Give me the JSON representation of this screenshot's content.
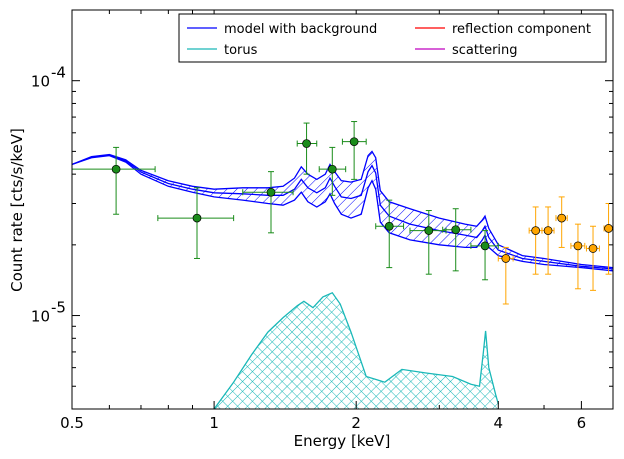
{
  "chart_data": {
    "type": "line",
    "xlabel": "Energy [keV]",
    "ylabel": "Count rate [cts/s/keV]",
    "xscale": "log",
    "yscale": "log",
    "xlim": [
      0.5,
      7.0
    ],
    "ylim": [
      4e-06,
      0.0002
    ],
    "x_ticks": [
      {
        "value": 0.5,
        "label": "0.5"
      },
      {
        "value": 1,
        "label": "1"
      },
      {
        "value": 2,
        "label": "2"
      },
      {
        "value": 4,
        "label": "4"
      },
      {
        "value": 6,
        "label": "6"
      }
    ],
    "y_ticks": [
      {
        "value": 1e-05,
        "base": "10",
        "exp": "-5"
      },
      {
        "value": 0.0001,
        "base": "10",
        "exp": "-4"
      }
    ],
    "legend": {
      "placement": "top-right",
      "entries": [
        {
          "label": "model with background",
          "color": "#0000ff"
        },
        {
          "label": "reflection component",
          "color": "#ff0000"
        },
        {
          "label": "torus",
          "color": "#1ab8b8"
        },
        {
          "label": "scattering",
          "color": "#bf00bf"
        }
      ]
    },
    "colors": {
      "model": "#0000ff",
      "torus": "#1ab8b8",
      "data_green": "#1a8c1a",
      "data_orange": "#ffa500"
    },
    "model_band": {
      "x": [
        0.5,
        0.55,
        0.6,
        0.65,
        0.7,
        0.8,
        0.9,
        1.0,
        1.15,
        1.3,
        1.4,
        1.48,
        1.53,
        1.58,
        1.65,
        1.72,
        1.76,
        1.8,
        1.86,
        1.95,
        2.05,
        2.12,
        2.16,
        2.2,
        2.25,
        2.35,
        2.6,
        3.0,
        3.4,
        3.6,
        3.7,
        3.75,
        3.82,
        4.0,
        4.5,
        5.0,
        6.0,
        7.0
      ],
      "upper": [
        4.4e-05,
        4.75e-05,
        4.85e-05,
        4.6e-05,
        4.15e-05,
        3.75e-05,
        3.55e-05,
        3.45e-05,
        3.5e-05,
        3.5e-05,
        3.55e-05,
        3.85e-05,
        4.3e-05,
        4e-05,
        3.8e-05,
        4e-05,
        4.4e-05,
        4.1e-05,
        3.75e-05,
        3.7e-05,
        3.8e-05,
        4.8e-05,
        5e-05,
        4.7e-05,
        3.4e-05,
        3.05e-05,
        2.85e-05,
        2.6e-05,
        2.45e-05,
        2.4e-05,
        2.55e-05,
        2.65e-05,
        2.35e-05,
        2e-05,
        1.8e-05,
        1.75e-05,
        1.65e-05,
        1.6e-05
      ],
      "lower": [
        4.4e-05,
        4.7e-05,
        4.8e-05,
        4.5e-05,
        4e-05,
        3.55e-05,
        3.35e-05,
        3.2e-05,
        3.1e-05,
        3e-05,
        2.95e-05,
        3.1e-05,
        3.35e-05,
        3.05e-05,
        2.9e-05,
        3.05e-05,
        3.3e-05,
        3e-05,
        2.7e-05,
        2.6e-05,
        2.7e-05,
        3.5e-05,
        3.75e-05,
        3.45e-05,
        2.5e-05,
        2.25e-05,
        2.1e-05,
        2e-05,
        1.95e-05,
        1.95e-05,
        2.1e-05,
        2.2e-05,
        1.95e-05,
        1.8e-05,
        1.7e-05,
        1.65e-05,
        1.6e-05,
        1.55e-05
      ],
      "mid": [
        4.4e-05,
        4.72e-05,
        4.82e-05,
        4.55e-05,
        4.08e-05,
        3.65e-05,
        3.45e-05,
        3.33e-05,
        3.3e-05,
        3.25e-05,
        3.25e-05,
        3.45e-05,
        3.8e-05,
        3.5e-05,
        3.33e-05,
        3.5e-05,
        3.85e-05,
        3.55e-05,
        3.2e-05,
        3.15e-05,
        3.25e-05,
        4.1e-05,
        4.35e-05,
        4.05e-05,
        2.95e-05,
        2.65e-05,
        2.45e-05,
        2.3e-05,
        2.2e-05,
        2.15e-05,
        2.3e-05,
        2.4e-05,
        2.15e-05,
        1.9e-05,
        1.75e-05,
        1.7e-05,
        1.62e-05,
        1.58e-05
      ]
    },
    "torus_band": {
      "x": [
        1.0,
        1.1,
        1.2,
        1.3,
        1.4,
        1.5,
        1.55,
        1.62,
        1.7,
        1.78,
        1.85,
        1.95,
        2.1,
        2.3,
        2.5,
        2.8,
        3.2,
        3.5,
        3.65,
        3.72,
        3.76,
        3.82,
        3.95,
        4.0
      ],
      "upper": [
        4e-06,
        5.2e-06,
        6.8e-06,
        8.5e-06,
        9.8e-06,
        1.1e-05,
        1.15e-05,
        1.08e-05,
        1.2e-05,
        1.25e-05,
        1.12e-05,
        8.5e-06,
        5.5e-06,
        5.2e-06,
        5.9e-06,
        5.7e-06,
        5.5e-06,
        5.1e-06,
        5e-06,
        7e-06,
        8.6e-06,
        6e-06,
        4.6e-06,
        4.2e-06
      ],
      "lower": [
        4e-06,
        4.5e-06,
        5.5e-06,
        6.8e-06,
        7.9e-06,
        8.8e-06,
        9.2e-06,
        8.7e-06,
        9.6e-06,
        1e-05,
        9e-06,
        6.9e-06,
        4.6e-06,
        4.4e-06,
        4.9e-06,
        4.8e-06,
        4.6e-06,
        4.3e-06,
        4.2e-06,
        5.8e-06,
        7e-06,
        5e-06,
        4e-06,
        4e-06
      ]
    },
    "series_green": [
      {
        "x": 0.62,
        "y": 4.2e-05,
        "xlo": 0.5,
        "xhi": 0.75,
        "ylo": 2.7e-05,
        "yhi": 5.2e-05
      },
      {
        "x": 0.92,
        "y": 2.6e-05,
        "xlo": 0.76,
        "xhi": 1.1,
        "ylo": 1.75e-05,
        "yhi": 3.5e-05
      },
      {
        "x": 1.32,
        "y": 3.35e-05,
        "xlo": 1.15,
        "xhi": 1.47,
        "ylo": 2.25e-05,
        "yhi": 4.1e-05
      },
      {
        "x": 1.57,
        "y": 5.4e-05,
        "xlo": 1.5,
        "xhi": 1.65,
        "ylo": 4e-05,
        "yhi": 6.6e-05
      },
      {
        "x": 1.78,
        "y": 4.2e-05,
        "xlo": 1.67,
        "xhi": 1.9,
        "ylo": 3.25e-05,
        "yhi": 5.2e-05
      },
      {
        "x": 1.98,
        "y": 5.5e-05,
        "xlo": 1.87,
        "xhi": 2.1,
        "ylo": 3.8e-05,
        "yhi": 6.7e-05
      },
      {
        "x": 2.35,
        "y": 2.4e-05,
        "xlo": 2.2,
        "xhi": 2.52,
        "ylo": 1.6e-05,
        "yhi": 3.1e-05
      },
      {
        "x": 2.85,
        "y": 2.3e-05,
        "xlo": 2.6,
        "xhi": 3.1,
        "ylo": 1.5e-05,
        "yhi": 2.8e-05
      },
      {
        "x": 3.25,
        "y": 2.32e-05,
        "xlo": 3.05,
        "xhi": 3.5,
        "ylo": 1.55e-05,
        "yhi": 2.85e-05
      },
      {
        "x": 3.75,
        "y": 1.98e-05,
        "xlo": 3.5,
        "xhi": 4.0,
        "ylo": 1.42e-05,
        "yhi": 2.3e-05
      }
    ],
    "series_orange": [
      {
        "x": 4.15,
        "y": 1.75e-05,
        "xlo": 4.0,
        "xhi": 4.3,
        "ylo": 1.12e-05,
        "yhi": 1.95e-05
      },
      {
        "x": 4.8,
        "y": 2.3e-05,
        "xlo": 4.65,
        "xhi": 4.95,
        "ylo": 1.5e-05,
        "yhi": 2.9e-05
      },
      {
        "x": 5.1,
        "y": 2.3e-05,
        "xlo": 4.95,
        "xhi": 5.25,
        "ylo": 1.5e-05,
        "yhi": 2.9e-05
      },
      {
        "x": 5.45,
        "y": 2.6e-05,
        "xlo": 5.3,
        "xhi": 5.6,
        "ylo": 1.95e-05,
        "yhi": 3.2e-05
      },
      {
        "x": 5.9,
        "y": 1.98e-05,
        "xlo": 5.7,
        "xhi": 6.1,
        "ylo": 1.3e-05,
        "yhi": 2.45e-05
      },
      {
        "x": 6.35,
        "y": 1.93e-05,
        "xlo": 6.15,
        "xhi": 6.55,
        "ylo": 1.28e-05,
        "yhi": 2.4e-05
      },
      {
        "x": 6.85,
        "y": 2.35e-05,
        "xlo": 6.7,
        "xhi": 7.0,
        "ylo": 1.5e-05,
        "yhi": 3e-05
      }
    ]
  }
}
